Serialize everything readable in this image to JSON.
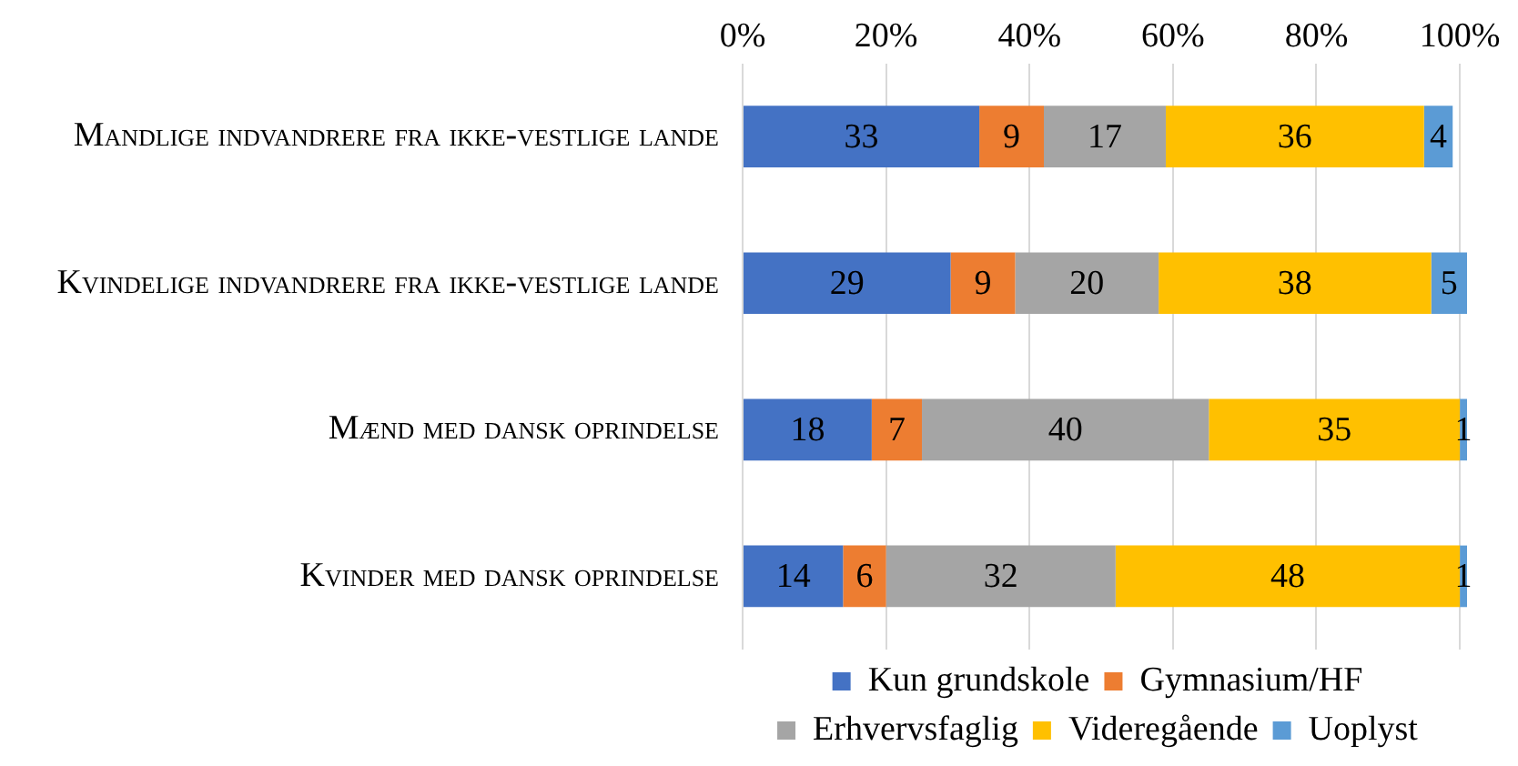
{
  "chart_data": {
    "type": "bar",
    "orientation": "horizontal",
    "stacked": true,
    "categories": [
      "Mandlige indvandrere fra ikke-vestlige lande",
      "Kvindelige indvandrere fra ikke-vestlige lande",
      "Mænd med dansk oprindelse",
      "Kvinder med dansk oprindelse"
    ],
    "series": [
      {
        "name": "Kun grundskole",
        "color": "#4472c4",
        "values": [
          33,
          29,
          18,
          14
        ]
      },
      {
        "name": "Gymnasium/HF",
        "color": "#ed7d31",
        "values": [
          9,
          9,
          7,
          6
        ]
      },
      {
        "name": "Erhvervsfaglig",
        "color": "#a5a5a5",
        "values": [
          17,
          20,
          40,
          32
        ]
      },
      {
        "name": "Videregående",
        "color": "#ffc000",
        "values": [
          36,
          38,
          35,
          48
        ]
      },
      {
        "name": "Uoplyst",
        "color": "#5b9bd5",
        "values": [
          4,
          5,
          1,
          1
        ]
      }
    ],
    "xlim": [
      0,
      101
    ],
    "xticks": [
      {
        "value": 0,
        "label": "0%"
      },
      {
        "value": 20,
        "label": "20%"
      },
      {
        "value": 40,
        "label": "40%"
      },
      {
        "value": 60,
        "label": "60%"
      },
      {
        "value": 80,
        "label": "80%"
      },
      {
        "value": 100,
        "label": "100%"
      }
    ],
    "grid": "x",
    "legend": "bottom",
    "data_labels": true
  }
}
